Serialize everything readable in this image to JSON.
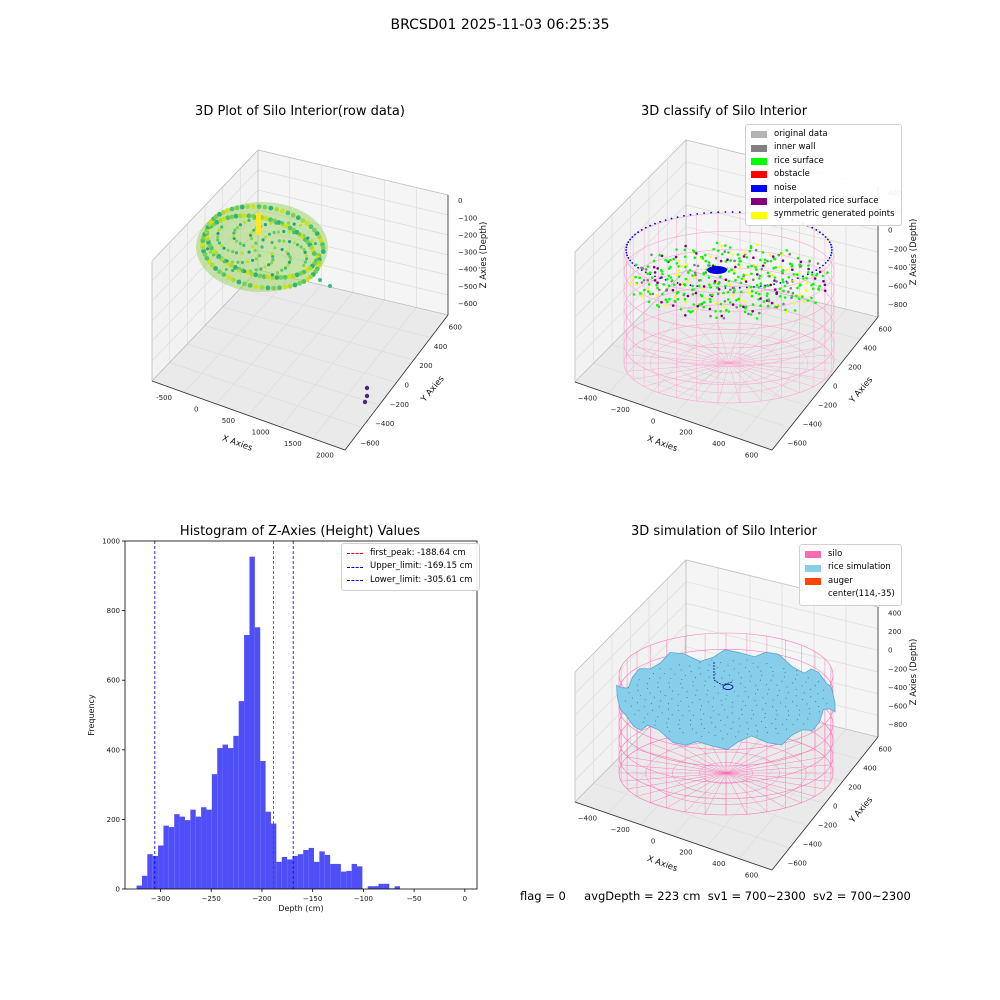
{
  "figure": {
    "title": "BRCSD01 2025-11-03 06:25:35",
    "footer": {
      "flag": "flag = 0",
      "avg": "avgDepth = 223 cm",
      "sv1": "sv1 = 700~2300",
      "sv2": "sv2 = 700~2300"
    }
  },
  "panels": {
    "raw": {
      "title": "3D Plot of Silo Interior(row data)",
      "xlabel": "X Axies",
      "ylabel": "Y Axies",
      "zlabel": "Z Axies (Depth)",
      "xticks": [
        "-500",
        "0",
        "500",
        "1000",
        "1500",
        "2000"
      ],
      "yticks": [
        "600",
        "400",
        "200",
        "0",
        "−200",
        "−400",
        "−600"
      ],
      "zticks": [
        "0",
        "−100",
        "−200",
        "−300",
        "−400",
        "−500",
        "−600"
      ]
    },
    "classify": {
      "title": "3D classify of Silo Interior",
      "xlabel": "X Axies",
      "ylabel": "Y Axies",
      "zlabel": "Z Axies (Depth)",
      "xticks": [
        "−400",
        "−200",
        "0",
        "200",
        "400",
        "600"
      ],
      "yticks": [
        "600",
        "400",
        "200",
        "0",
        "−200",
        "−400",
        "−600"
      ],
      "zticks": [
        "400",
        "200",
        "0",
        "−200",
        "−400",
        "−600",
        "−800"
      ],
      "legend": [
        {
          "label": "original data",
          "color": "#b3b3b3"
        },
        {
          "label": "inner wall",
          "color": "#808080"
        },
        {
          "label": "rice surface",
          "color": "#00ff00"
        },
        {
          "label": "obstacle",
          "color": "#ff0000"
        },
        {
          "label": "noise",
          "color": "#0000ff"
        },
        {
          "label": "interpolated rice surface",
          "color": "#800080"
        },
        {
          "label": "symmetric generated points",
          "color": "#ffff00"
        }
      ]
    },
    "simulation": {
      "title": "3D simulation of Silo Interior",
      "xlabel": "X Axies",
      "ylabel": "Y Axies",
      "zlabel": "Z Axies (Depth)",
      "xticks": [
        "−400",
        "−200",
        "0",
        "200",
        "400",
        "600"
      ],
      "yticks": [
        "600",
        "400",
        "200",
        "0",
        "−200",
        "−400",
        "−600"
      ],
      "zticks": [
        "400",
        "200",
        "0",
        "−200",
        "−400",
        "−600",
        "−800"
      ],
      "legend": [
        {
          "label": "silo",
          "color": "#ff69b4"
        },
        {
          "label": "rice simulation",
          "color": "#87ceeb"
        },
        {
          "label": "auger",
          "color": "#ff4500"
        },
        {
          "label": "center(114,-35)",
          "color": ""
        }
      ]
    }
  },
  "chart_data": {
    "type": "bar",
    "title": "Histogram of Z-Axies (Height) Values",
    "xlabel": "Depth (cm)",
    "ylabel": "Frequency",
    "xlim": [
      -335,
      12
    ],
    "ylim": [
      0,
      1000
    ],
    "xticks": [
      "−300",
      "−250",
      "−200",
      "−150",
      "−100",
      "−50",
      "0"
    ],
    "xtick_values": [
      -300,
      -250,
      -200,
      -150,
      -100,
      -50,
      0
    ],
    "yticks": [
      "0",
      "200",
      "400",
      "600",
      "800",
      "1000"
    ],
    "ytick_values": [
      0,
      200,
      400,
      600,
      800,
      1000
    ],
    "bin_width": 5.3,
    "bar_color": "#4f4ff7",
    "bins_start": [
      -323.6,
      -318.3,
      -313.0,
      -307.7,
      -302.4,
      -297.1,
      -291.8,
      -286.5,
      -281.2,
      -275.9,
      -270.6,
      -265.3,
      -260.0,
      -254.7,
      -249.4,
      -244.1,
      -238.8,
      -233.5,
      -228.2,
      -222.9,
      -217.6,
      -212.3,
      -207.0,
      -201.7,
      -196.4,
      -191.1,
      -185.8,
      -180.5,
      -175.2,
      -169.9,
      -164.6,
      -159.3,
      -154.0,
      -148.7,
      -143.4,
      -138.1,
      -132.8,
      -127.5,
      -122.2,
      -116.9,
      -111.6,
      -106.3,
      -101.0,
      -95.7,
      -90.4,
      -85.1,
      -79.8,
      -74.5,
      -69.2,
      -63.9,
      -58.6,
      -53.3,
      -48.0,
      -42.7,
      -37.4,
      -32.1,
      -26.8,
      -21.5,
      -16.2,
      -10.9,
      -5.6
    ],
    "values": [
      10,
      38,
      100,
      95,
      125,
      182,
      178,
      215,
      208,
      198,
      228,
      208,
      235,
      228,
      330,
      405,
      415,
      405,
      440,
      540,
      730,
      955,
      752,
      368,
      222,
      188,
      78,
      92,
      85,
      95,
      100,
      112,
      118,
      78,
      108,
      98,
      72,
      72,
      50,
      52,
      72,
      65,
      0,
      8,
      8,
      15,
      15,
      2,
      8,
      0,
      0,
      0,
      0,
      0,
      0,
      0,
      0,
      0,
      0,
      0,
      0
    ],
    "vlines": [
      {
        "label": "first_peak: -188.64 cm",
        "x": -188.64,
        "color": "#ff0000"
      },
      {
        "label": "Upper_limit: -169.15 cm",
        "x": -169.15,
        "color": "#0000ff"
      },
      {
        "label": "Lower_limit: -305.61 cm",
        "x": -305.61,
        "color": "#0000ff"
      }
    ]
  }
}
